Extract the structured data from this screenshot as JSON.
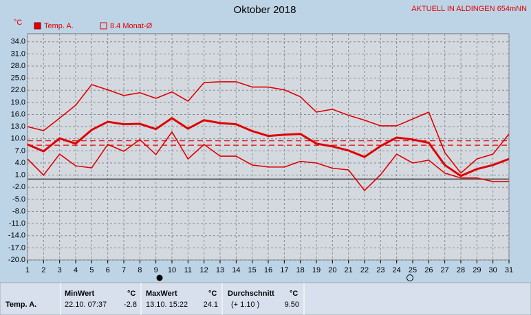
{
  "chart_data": {
    "type": "line",
    "title": "Oktober 2018",
    "station": "AKTUELL IN ALDINGEN 654mNN",
    "y_unit": "°C",
    "legend": [
      "Temp. A.",
      "8.4 Monat-Ø"
    ],
    "x": [
      1,
      2,
      3,
      4,
      5,
      6,
      7,
      8,
      9,
      10,
      11,
      12,
      13,
      14,
      15,
      16,
      17,
      18,
      19,
      20,
      21,
      22,
      23,
      24,
      25,
      26,
      27,
      28,
      29,
      30,
      31
    ],
    "series": [
      {
        "color": "#e00000",
        "width": 1.6,
        "values": [
          13.0,
          12.0,
          15.1,
          18.3,
          23.4,
          22.1,
          20.7,
          21.4,
          20.0,
          21.6,
          19.3,
          23.9,
          24.1,
          24.1,
          22.8,
          22.8,
          22.1,
          20.4,
          16.6,
          17.3,
          15.8,
          14.6,
          13.2,
          13.2,
          14.9,
          16.6,
          6.6,
          1.5,
          5.0,
          6.2,
          11.2
        ]
      },
      {
        "color": "#e00000",
        "width": 3,
        "values": [
          8.6,
          6.9,
          10.1,
          8.8,
          12.2,
          14.2,
          13.6,
          13.7,
          12.4,
          15.1,
          12.5,
          14.6,
          13.9,
          13.6,
          11.9,
          10.7,
          11.0,
          11.2,
          8.8,
          8.1,
          7.1,
          5.5,
          8.2,
          10.3,
          9.8,
          9.0,
          3.5,
          0.8,
          2.5,
          3.5,
          5.0
        ]
      },
      {
        "color": "#e00000",
        "width": 1.6,
        "values": [
          5.0,
          1.0,
          6.2,
          3.3,
          2.8,
          8.6,
          6.9,
          9.8,
          6.1,
          11.7,
          5.0,
          8.6,
          5.7,
          5.7,
          3.5,
          3.0,
          3.0,
          4.4,
          4.0,
          2.7,
          2.3,
          -2.8,
          1.1,
          6.2,
          4.0,
          4.7,
          1.5,
          0.3,
          0.3,
          -0.6,
          -0.6
        ]
      }
    ],
    "reference_lines": [
      {
        "value": 9.5,
        "color": "#e00000"
      },
      {
        "value": 8.4,
        "color": "#e00000"
      }
    ],
    "xlim": [
      1,
      31
    ],
    "xticks": [
      1,
      2,
      3,
      4,
      5,
      6,
      7,
      8,
      9,
      10,
      11,
      12,
      13,
      14,
      15,
      16,
      17,
      18,
      19,
      20,
      21,
      22,
      23,
      24,
      25,
      26,
      27,
      28,
      29,
      30,
      31
    ],
    "ylim": [
      -20,
      36
    ],
    "yticks": [
      {
        "value": 34,
        "label": "34.0"
      },
      {
        "value": 31,
        "label": "31.0"
      },
      {
        "value": 28,
        "label": "28.0"
      },
      {
        "value": 25,
        "label": "25.0"
      },
      {
        "value": 22,
        "label": "22.0"
      },
      {
        "value": 19,
        "label": "19.0"
      },
      {
        "value": 16,
        "label": "16.0"
      },
      {
        "value": 13,
        "label": "13.0"
      },
      {
        "value": 10,
        "label": "10.0"
      },
      {
        "value": 7,
        "label": "7.0"
      },
      {
        "value": 4,
        "label": "4.0"
      },
      {
        "value": 1,
        "label": "1.0"
      },
      {
        "value": -2,
        "label": "-2.0"
      },
      {
        "value": -5,
        "label": "-5.0"
      },
      {
        "value": -8,
        "label": "-8.0"
      },
      {
        "value": -11,
        "label": "-11.0"
      },
      {
        "value": -14,
        "label": "-14.0"
      },
      {
        "value": -17,
        "label": "-17.0"
      },
      {
        "value": -20,
        "label": "-20.0"
      }
    ],
    "grid": true
  },
  "table": {
    "columns": [
      {
        "title": "MinWert",
        "unit": "°C"
      },
      {
        "title": "MaxWert",
        "unit": "°C"
      },
      {
        "title": "Durchschnitt",
        "unit": "°C"
      }
    ],
    "rows": [
      {
        "label": "Temp. A.",
        "cells": [
          "22.10. 07:37",
          "-2.8",
          "13.10. 15:22",
          "24.1",
          "(+ 1.10 )",
          "9.50"
        ]
      }
    ]
  }
}
